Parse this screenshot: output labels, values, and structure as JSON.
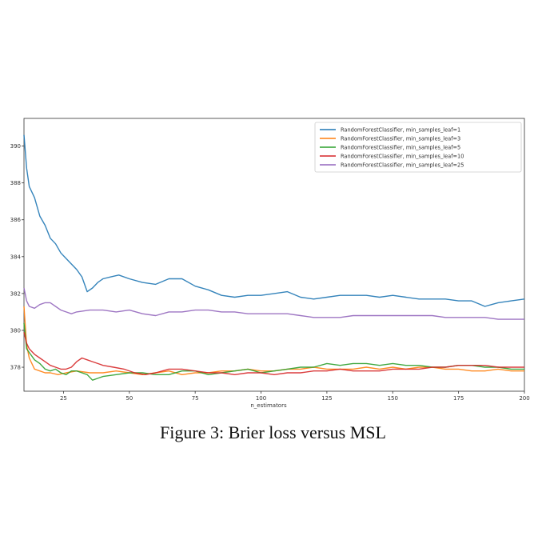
{
  "caption": "Figure 3: Brier loss versus MSL",
  "chart_data": {
    "type": "line",
    "title": "",
    "xlabel": "n_estimators",
    "ylabel": "",
    "xlim": [
      10,
      200
    ],
    "ylim": [
      376.7,
      391.5
    ],
    "xticks": [
      25,
      50,
      75,
      100,
      125,
      150,
      175,
      200
    ],
    "yticks": [
      378,
      380,
      382,
      384,
      386,
      388,
      390
    ],
    "grid": false,
    "legend_position": "top-right",
    "series": [
      {
        "name": "RandomForestClassifier, min_samples_leaf=1",
        "color": "#1f77b4",
        "x": [
          10,
          11,
          12,
          14,
          16,
          18,
          20,
          22,
          24,
          26,
          28,
          30,
          32,
          34,
          36,
          38,
          40,
          43,
          46,
          50,
          55,
          60,
          65,
          70,
          75,
          80,
          85,
          90,
          95,
          100,
          105,
          110,
          115,
          120,
          125,
          130,
          135,
          140,
          145,
          150,
          155,
          160,
          165,
          170,
          175,
          180,
          185,
          190,
          195,
          200
        ],
        "y": [
          390.6,
          388.8,
          387.8,
          387.2,
          386.2,
          385.7,
          385.0,
          384.7,
          384.2,
          383.9,
          383.6,
          383.3,
          382.9,
          382.1,
          382.3,
          382.6,
          382.8,
          382.9,
          383.0,
          382.8,
          382.6,
          382.5,
          382.8,
          382.8,
          382.4,
          382.2,
          381.9,
          381.8,
          381.9,
          381.9,
          382.0,
          382.1,
          381.8,
          381.7,
          381.8,
          381.9,
          381.9,
          381.9,
          381.8,
          381.9,
          381.8,
          381.7,
          381.7,
          381.7,
          381.6,
          381.6,
          381.3,
          381.5,
          381.6,
          381.7
        ]
      },
      {
        "name": "RandomForestClassifier, min_samples_leaf=3",
        "color": "#ff7f0e",
        "x": [
          10,
          11,
          12,
          14,
          16,
          18,
          20,
          23,
          26,
          30,
          35,
          40,
          45,
          50,
          55,
          60,
          65,
          70,
          75,
          80,
          85,
          90,
          95,
          100,
          105,
          110,
          115,
          120,
          125,
          130,
          135,
          140,
          145,
          150,
          155,
          160,
          165,
          170,
          175,
          180,
          185,
          190,
          195,
          200
        ],
        "y": [
          381.3,
          379.2,
          378.5,
          377.9,
          377.8,
          377.7,
          377.7,
          377.6,
          377.7,
          377.8,
          377.7,
          377.7,
          377.8,
          377.7,
          377.6,
          377.7,
          377.8,
          377.6,
          377.7,
          377.7,
          377.8,
          377.8,
          377.9,
          377.8,
          377.8,
          377.9,
          377.9,
          378.0,
          377.9,
          377.9,
          377.9,
          378.0,
          377.9,
          378.0,
          377.9,
          378.0,
          378.0,
          377.9,
          377.9,
          377.8,
          377.8,
          377.9,
          377.8,
          377.8
        ]
      },
      {
        "name": "RandomForestClassifier, min_samples_leaf=5",
        "color": "#2ca02c",
        "x": [
          10,
          11,
          12,
          14,
          16,
          18,
          20,
          22,
          24,
          26,
          28,
          30,
          32,
          34,
          36,
          38,
          40,
          45,
          50,
          55,
          60,
          65,
          70,
          75,
          80,
          85,
          90,
          95,
          100,
          105,
          110,
          115,
          120,
          125,
          130,
          135,
          140,
          145,
          150,
          155,
          160,
          165,
          170,
          175,
          180,
          185,
          190,
          195,
          200
        ],
        "y": [
          380.4,
          379.0,
          378.8,
          378.4,
          378.2,
          377.9,
          377.8,
          377.9,
          377.7,
          377.6,
          377.8,
          377.8,
          377.7,
          377.6,
          377.3,
          377.4,
          377.5,
          377.6,
          377.7,
          377.7,
          377.6,
          377.6,
          377.8,
          377.8,
          377.6,
          377.7,
          377.8,
          377.9,
          377.7,
          377.8,
          377.9,
          378.0,
          378.0,
          378.2,
          378.1,
          378.2,
          378.2,
          378.1,
          378.2,
          378.1,
          378.1,
          378.0,
          378.0,
          378.1,
          378.1,
          378.0,
          378.0,
          377.9,
          377.9
        ]
      },
      {
        "name": "RandomForestClassifier, min_samples_leaf=10",
        "color": "#d62728",
        "x": [
          10,
          11,
          12,
          14,
          16,
          18,
          20,
          22,
          24,
          26,
          28,
          30,
          32,
          34,
          36,
          38,
          40,
          44,
          48,
          52,
          56,
          60,
          65,
          70,
          75,
          80,
          85,
          90,
          95,
          100,
          105,
          110,
          115,
          120,
          125,
          130,
          135,
          140,
          145,
          150,
          155,
          160,
          165,
          170,
          175,
          180,
          185,
          190,
          195,
          200
        ],
        "y": [
          379.9,
          379.3,
          379.0,
          378.7,
          378.5,
          378.3,
          378.1,
          378.0,
          377.9,
          377.9,
          378.0,
          378.3,
          378.5,
          378.4,
          378.3,
          378.2,
          378.1,
          378.0,
          377.9,
          377.7,
          377.6,
          377.7,
          377.9,
          377.9,
          377.8,
          377.7,
          377.7,
          377.6,
          377.7,
          377.7,
          377.6,
          377.7,
          377.7,
          377.8,
          377.8,
          377.9,
          377.8,
          377.8,
          377.8,
          377.9,
          377.9,
          377.9,
          378.0,
          378.0,
          378.1,
          378.1,
          378.1,
          378.0,
          378.0,
          378.0
        ]
      },
      {
        "name": "RandomForestClassifier, min_samples_leaf=25",
        "color": "#9467bd",
        "x": [
          10,
          11,
          12,
          14,
          16,
          18,
          20,
          22,
          24,
          26,
          28,
          30,
          35,
          40,
          45,
          50,
          55,
          60,
          65,
          70,
          75,
          80,
          85,
          90,
          95,
          100,
          105,
          110,
          115,
          120,
          125,
          130,
          135,
          140,
          145,
          150,
          155,
          160,
          165,
          170,
          175,
          180,
          185,
          190,
          195,
          200
        ],
        "y": [
          382.3,
          381.6,
          381.3,
          381.2,
          381.4,
          381.5,
          381.5,
          381.3,
          381.1,
          381.0,
          380.9,
          381.0,
          381.1,
          381.1,
          381.0,
          381.1,
          380.9,
          380.8,
          381.0,
          381.0,
          381.1,
          381.1,
          381.0,
          381.0,
          380.9,
          380.9,
          380.9,
          380.9,
          380.8,
          380.7,
          380.7,
          380.7,
          380.8,
          380.8,
          380.8,
          380.8,
          380.8,
          380.8,
          380.8,
          380.7,
          380.7,
          380.7,
          380.7,
          380.6,
          380.6,
          380.6
        ]
      }
    ]
  }
}
